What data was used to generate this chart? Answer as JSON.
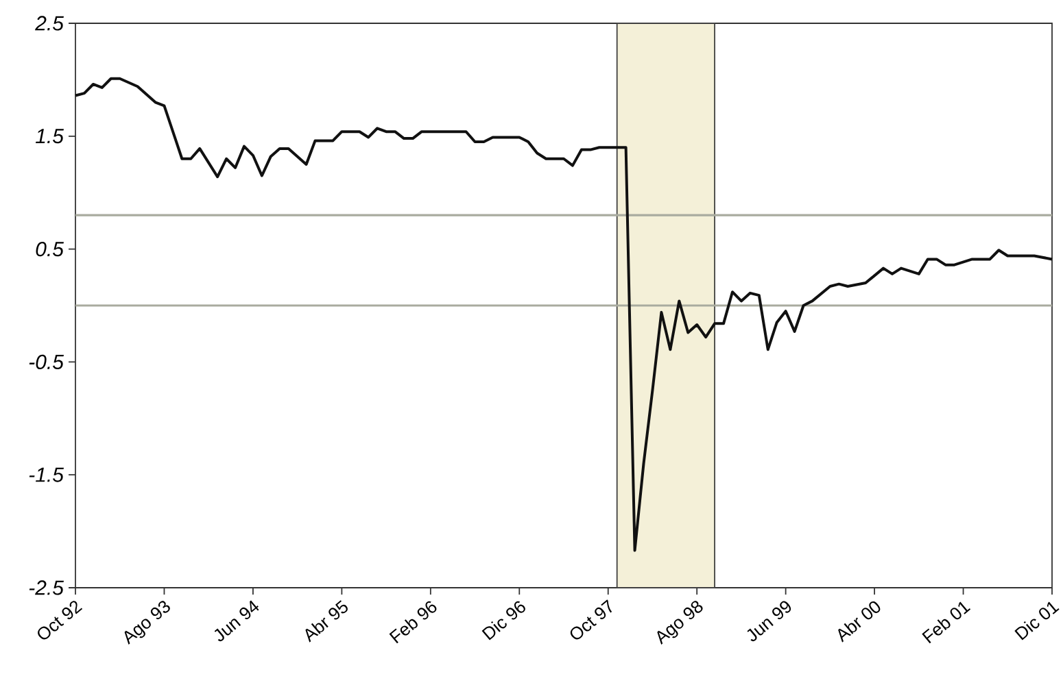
{
  "chart_data": {
    "type": "line",
    "marker": "none",
    "line_style": "solid",
    "x": [
      "1992-10",
      "1992-11",
      "1992-12",
      "1993-01",
      "1993-02",
      "1993-03",
      "1993-05",
      "1993-07",
      "1993-08",
      "1993-10",
      "1993-11",
      "1993-12",
      "1994-02",
      "1994-03",
      "1994-04",
      "1994-05",
      "1994-06",
      "1994-07",
      "1994-08",
      "1994-09",
      "1994-10",
      "1994-12",
      "1995-01",
      "1995-03",
      "1995-04",
      "1995-06",
      "1995-07",
      "1995-08",
      "1995-09",
      "1995-10",
      "1995-11",
      "1995-12",
      "1996-01",
      "1996-06",
      "1996-07",
      "1996-08",
      "1996-09",
      "1996-12",
      "1997-01",
      "1997-02",
      "1997-03",
      "1997-05",
      "1997-06",
      "1997-07",
      "1997-08",
      "1997-09",
      "1997-12",
      "1998-01",
      "1998-02",
      "1998-03",
      "1998-04",
      "1998-05",
      "1998-06",
      "1998-07",
      "1998-08",
      "1998-09",
      "1998-10",
      "1998-11",
      "1998-12",
      "1999-01",
      "1999-02",
      "1999-03",
      "1999-04",
      "1999-05",
      "1999-06",
      "1999-07",
      "1999-08",
      "1999-09",
      "1999-11",
      "1999-12",
      "2000-01",
      "2000-03",
      "2000-05",
      "2000-06",
      "2000-07",
      "2000-09",
      "2000-10",
      "2000-11",
      "2000-12",
      "2001-01",
      "2001-03",
      "2001-05",
      "2001-06",
      "2001-07",
      "2001-10",
      "2001-12"
    ],
    "series": [
      {
        "color": "#111111",
        "values": [
          1.86,
          1.88,
          1.96,
          1.93,
          2.01,
          2.01,
          1.94,
          1.8,
          1.77,
          1.3,
          1.3,
          1.39,
          1.14,
          1.3,
          1.22,
          1.41,
          1.33,
          1.15,
          1.32,
          1.39,
          1.39,
          1.25,
          1.46,
          1.46,
          1.54,
          1.54,
          1.49,
          1.57,
          1.54,
          1.54,
          1.48,
          1.48,
          1.54,
          1.54,
          1.45,
          1.45,
          1.49,
          1.49,
          1.45,
          1.35,
          1.3,
          1.3,
          1.24,
          1.38,
          1.38,
          1.4,
          1.4,
          -2.17,
          -1.4,
          -0.75,
          -0.06,
          -0.39,
          0.04,
          -0.24,
          -0.17,
          -0.28,
          -0.16,
          -0.16,
          0.12,
          0.04,
          0.11,
          0.09,
          -0.39,
          -0.15,
          -0.05,
          -0.23,
          0.0,
          0.04,
          0.17,
          0.19,
          0.17,
          0.2,
          0.33,
          0.28,
          0.33,
          0.28,
          0.41,
          0.41,
          0.36,
          0.36,
          0.41,
          0.41,
          0.49,
          0.44,
          0.44,
          0.41
        ]
      }
    ],
    "xlim": [
      "1992-10",
      "2001-12"
    ],
    "xticks": [
      {
        "value": "1992-10",
        "label": "Oct 92"
      },
      {
        "value": "1993-08",
        "label": "Ago 93"
      },
      {
        "value": "1994-06",
        "label": "Jun 94"
      },
      {
        "value": "1995-04",
        "label": "Abr 95"
      },
      {
        "value": "1996-02",
        "label": "Feb 96"
      },
      {
        "value": "1996-12",
        "label": "Dic 96"
      },
      {
        "value": "1997-10",
        "label": "Oct 97"
      },
      {
        "value": "1998-08",
        "label": "Ago 98"
      },
      {
        "value": "1999-06",
        "label": "Jun 99"
      },
      {
        "value": "2000-04",
        "label": "Abr 00"
      },
      {
        "value": "2001-02",
        "label": "Feb 01"
      },
      {
        "value": "2001-12",
        "label": "Dic 01"
      }
    ],
    "ylim": [
      -2.5,
      2.5
    ],
    "yticks": [
      -2.5,
      -1.5,
      -0.5,
      0.5,
      1.5,
      2.5
    ],
    "ref_lines": [
      {
        "axis": "y",
        "value": 0.8,
        "color": "#a9ab9f"
      },
      {
        "axis": "y",
        "value": 0.0,
        "color": "#a9ab9f"
      }
    ],
    "bands": [
      {
        "axis": "x",
        "from": "1997-11",
        "to": "1998-10",
        "color": "#f4f0d8"
      }
    ]
  }
}
